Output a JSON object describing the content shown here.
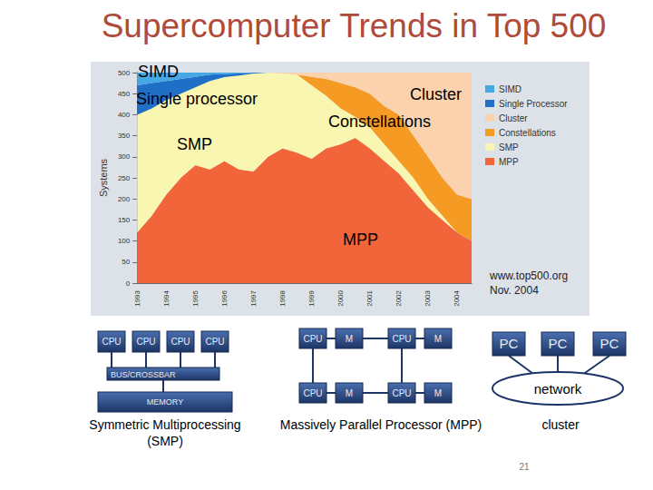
{
  "title": "Supercomputer Trends in Top 500",
  "chart_data": {
    "type": "area",
    "stacked": true,
    "legend": "right",
    "grid": false,
    "y_label": "Systems",
    "ylim": [
      0,
      500
    ],
    "yticks": [
      0,
      50,
      100,
      150,
      200,
      250,
      300,
      350,
      400,
      450,
      500
    ],
    "categories": [
      "1993",
      null,
      "1994",
      null,
      "1995",
      null,
      "1996",
      null,
      "1997",
      null,
      "1998",
      null,
      "1999",
      null,
      "2000",
      null,
      "2001",
      null,
      "2002",
      null,
      "2003",
      null,
      "2004",
      null
    ],
    "series": [
      {
        "name": "SIMD",
        "color": "#45a8e2",
        "values": [
          30,
          25,
          20,
          15,
          10,
          5,
          3,
          2,
          0,
          0,
          0,
          0,
          0,
          0,
          0,
          0,
          0,
          0,
          0,
          0,
          0,
          0,
          0,
          0
        ]
      },
      {
        "name": "Single Processor",
        "color": "#1f6fc6",
        "values": [
          70,
          60,
          45,
          35,
          25,
          15,
          8,
          5,
          2,
          0,
          0,
          0,
          0,
          0,
          0,
          0,
          0,
          0,
          0,
          0,
          0,
          0,
          0,
          0
        ]
      },
      {
        "name": "Cluster",
        "color": "#fbd2ae",
        "values": [
          0,
          0,
          0,
          0,
          0,
          0,
          0,
          0,
          0,
          0,
          2,
          5,
          10,
          15,
          25,
          35,
          50,
          80,
          100,
          150,
          200,
          250,
          290,
          300
        ]
      },
      {
        "name": "Constellations",
        "color": "#f59a23",
        "values": [
          0,
          0,
          0,
          0,
          0,
          0,
          0,
          0,
          0,
          0,
          0,
          0,
          20,
          40,
          60,
          70,
          80,
          90,
          110,
          100,
          100,
          90,
          90,
          100
        ]
      },
      {
        "name": "SMP",
        "color": "#f8f6b0",
        "values": [
          280,
          255,
          225,
          200,
          185,
          210,
          199,
          223,
          233,
          200,
          178,
          185,
          175,
          125,
          85,
          50,
          50,
          40,
          30,
          30,
          20,
          10,
          0,
          0
        ]
      },
      {
        "name": "MPP",
        "color": "#f2653a",
        "values": [
          120,
          160,
          210,
          250,
          280,
          270,
          290,
          270,
          265,
          300,
          320,
          310,
          295,
          320,
          330,
          345,
          320,
          290,
          260,
          220,
          180,
          150,
          120,
          100
        ]
      }
    ],
    "annotations": [
      "SIMD",
      "Single processor",
      "Cluster",
      "Constellations",
      "SMP",
      "MPP"
    ],
    "source": [
      "www.top500.org",
      "Nov. 2004"
    ]
  },
  "diagrams": {
    "smp": {
      "cpus": [
        "CPU",
        "CPU",
        "CPU",
        "CPU"
      ],
      "bus": "BUS/CROSSBAR",
      "memory": "MEMORY",
      "caption": [
        "Symmetric Multiprocessing",
        "(SMP)"
      ]
    },
    "mpp": {
      "nodes": [
        [
          "CPU",
          "M"
        ],
        [
          "CPU",
          "M"
        ],
        [
          "CPU",
          "M"
        ],
        [
          "CPU",
          "M"
        ]
      ],
      "caption": [
        "Massively Parallel Processor (MPP)"
      ]
    },
    "cluster": {
      "nodes": [
        "PC",
        "PC",
        "PC"
      ],
      "network": "network",
      "caption": [
        "cluster"
      ]
    }
  },
  "page_number": 21
}
